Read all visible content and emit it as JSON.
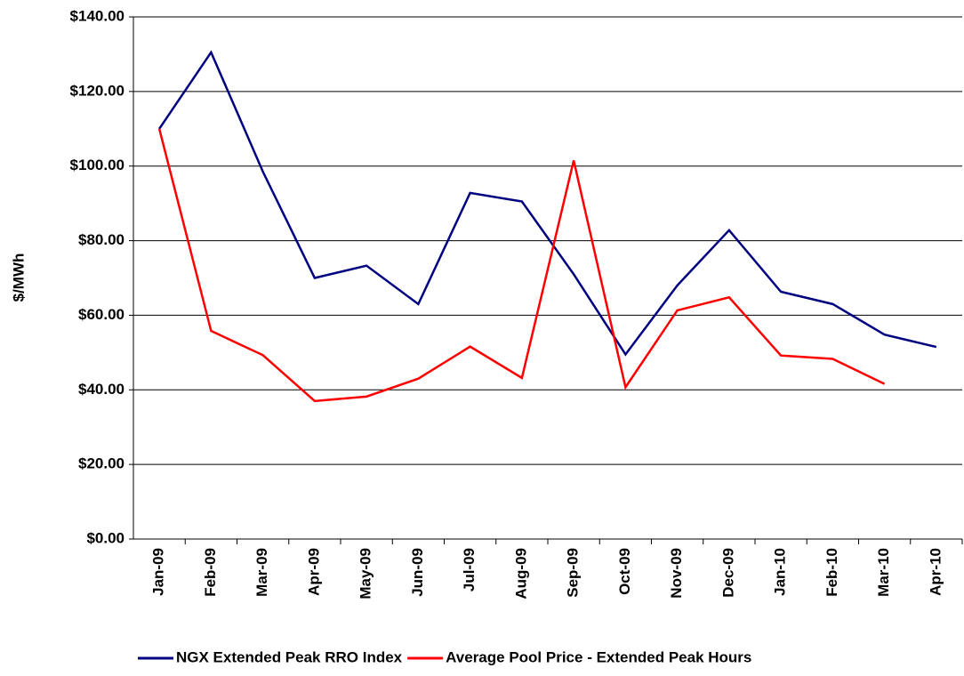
{
  "chart_data": {
    "type": "line",
    "y_label": "$/MWh",
    "categories": [
      "Jan-09",
      "Feb-09",
      "Mar-09",
      "Apr-09",
      "May-09",
      "Jun-09",
      "Jul-09",
      "Aug-09",
      "Sep-09",
      "Oct-09",
      "Nov-09",
      "Dec-09",
      "Jan-10",
      "Feb-10",
      "Mar-10",
      "Apr-10"
    ],
    "series": [
      {
        "name": "NGX Extended Peak RRO Index",
        "color": "#000080",
        "values": [
          110,
          130.5,
          98.5,
          70,
          73.3,
          63,
          92.8,
          90.5,
          71,
          49.5,
          68,
          82.8,
          66.3,
          63,
          54.8,
          51.5
        ]
      },
      {
        "name": "Average Pool Price - Extended Peak Hours",
        "color": "#ff0000",
        "values": [
          110,
          55.8,
          49.3,
          37,
          38.2,
          43,
          51.6,
          43.2,
          101.5,
          40.7,
          61.3,
          64.8,
          49.2,
          48.3,
          41.6,
          null
        ]
      }
    ],
    "ylim": [
      0,
      140
    ],
    "yticks": [
      {
        "value": 0,
        "label": "$0.00"
      },
      {
        "value": 20,
        "label": "$20.00"
      },
      {
        "value": 40,
        "label": "$40.00"
      },
      {
        "value": 60,
        "label": "$60.00"
      },
      {
        "value": 80,
        "label": "$80.00"
      },
      {
        "value": 100,
        "label": "$100.00"
      },
      {
        "value": 120,
        "label": "$120.00"
      },
      {
        "value": 140,
        "label": "$140.00"
      }
    ],
    "grid": true,
    "legend": "bottom"
  }
}
